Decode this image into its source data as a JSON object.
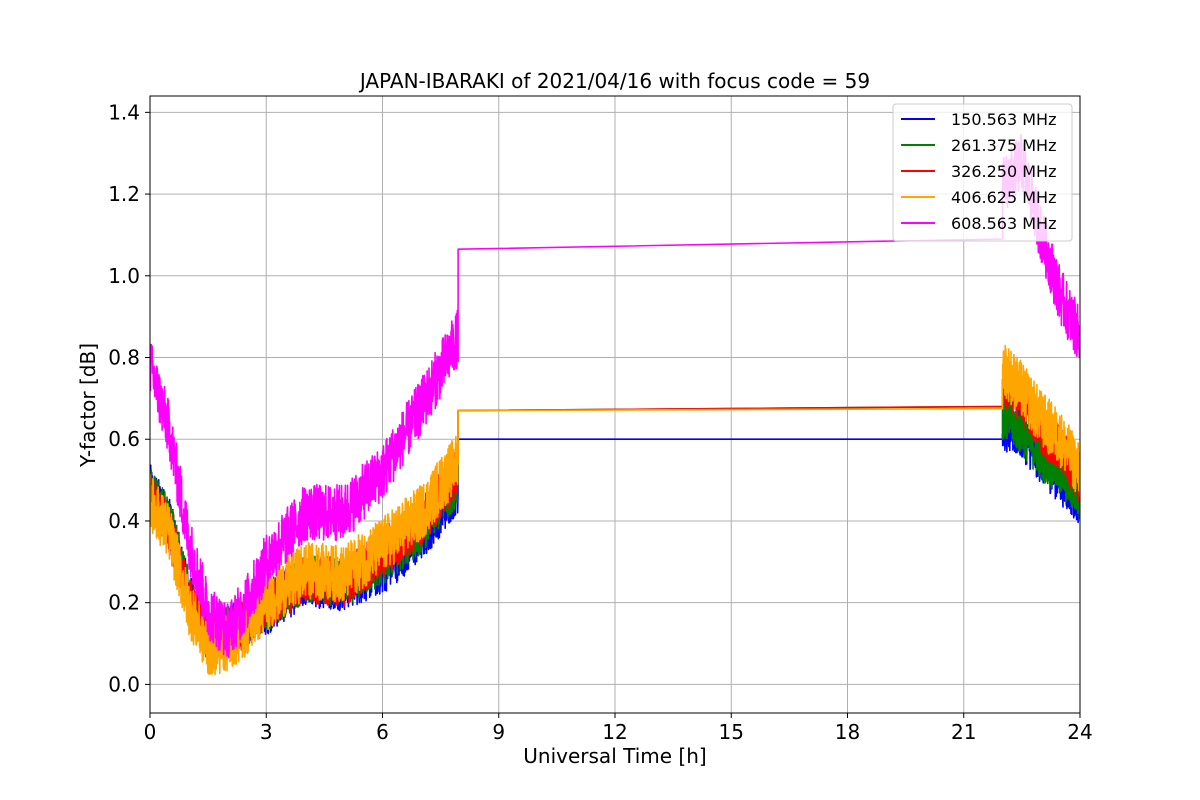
{
  "chart_data": {
    "type": "line",
    "title": "JAPAN-IBARAKI of 2021/04/16 with focus code = 59",
    "xlabel": "Universal Time [h]",
    "ylabel": "Y-factor [dB]",
    "xlim": [
      0,
      24
    ],
    "ylim": [
      -0.07,
      1.44
    ],
    "xticks": [
      0,
      3,
      6,
      9,
      12,
      15,
      18,
      21,
      24
    ],
    "yticks": [
      0.0,
      0.2,
      0.4,
      0.6,
      0.8,
      1.0,
      1.2,
      1.4
    ],
    "ytick_labels": [
      "0.0",
      "0.2",
      "0.4",
      "0.6",
      "0.8",
      "1.0",
      "1.2",
      "1.4"
    ],
    "grid": true,
    "legend_position": "top-right",
    "noise_note_free": true,
    "series": [
      {
        "name": "150.563 MHz",
        "color": "#0000ff",
        "amplitude": 0.06,
        "segments": [
          [
            [
              0,
              0.48
            ],
            [
              0.5,
              0.4
            ],
            [
              1.0,
              0.22
            ],
            [
              1.5,
              0.12
            ],
            [
              2.0,
              0.13
            ],
            [
              2.5,
              0.16
            ],
            [
              3.0,
              0.18
            ],
            [
              4.0,
              0.25
            ],
            [
              5.0,
              0.24
            ],
            [
              6.0,
              0.28
            ],
            [
              7.0,
              0.36
            ],
            [
              7.95,
              0.48
            ]
          ],
          [
            [
              7.95,
              0.6
            ],
            [
              22.0,
              0.6
            ]
          ],
          [
            [
              22.0,
              0.63
            ],
            [
              22.5,
              0.61
            ],
            [
              23.0,
              0.55
            ],
            [
              23.5,
              0.5
            ],
            [
              24.0,
              0.45
            ]
          ]
        ]
      },
      {
        "name": "261.375 MHz",
        "color": "#008000",
        "amplitude": 0.06,
        "segments": [
          [
            [
              0,
              0.47
            ],
            [
              0.5,
              0.4
            ],
            [
              1.0,
              0.22
            ],
            [
              1.5,
              0.12
            ],
            [
              2.0,
              0.13
            ],
            [
              2.5,
              0.16
            ],
            [
              3.0,
              0.19
            ],
            [
              4.0,
              0.26
            ],
            [
              5.0,
              0.25
            ],
            [
              6.0,
              0.3
            ],
            [
              7.0,
              0.38
            ],
            [
              7.95,
              0.5
            ]
          ],
          [
            [
              7.95,
              0.67
            ],
            [
              22.0,
              0.68
            ]
          ],
          [
            [
              22.0,
              0.66
            ],
            [
              22.5,
              0.62
            ],
            [
              23.0,
              0.56
            ],
            [
              23.5,
              0.52
            ],
            [
              24.0,
              0.46
            ]
          ]
        ]
      },
      {
        "name": "326.250 MHz",
        "color": "#ff0000",
        "amplitude": 0.06,
        "segments": [
          [
            [
              0,
              0.46
            ],
            [
              0.5,
              0.38
            ],
            [
              1.0,
              0.21
            ],
            [
              1.5,
              0.11
            ],
            [
              2.0,
              0.12
            ],
            [
              2.5,
              0.15
            ],
            [
              3.0,
              0.19
            ],
            [
              4.0,
              0.26
            ],
            [
              5.0,
              0.25
            ],
            [
              6.0,
              0.32
            ],
            [
              7.0,
              0.4
            ],
            [
              7.95,
              0.52
            ]
          ],
          [
            [
              7.95,
              0.67
            ],
            [
              22.0,
              0.68
            ]
          ],
          [
            [
              22.0,
              0.74
            ],
            [
              22.5,
              0.7
            ],
            [
              23.0,
              0.62
            ],
            [
              23.5,
              0.58
            ],
            [
              24.0,
              0.5
            ]
          ]
        ]
      },
      {
        "name": "406.625 MHz",
        "color": "#ffa500",
        "amplitude": 0.07,
        "segments": [
          [
            [
              0,
              0.45
            ],
            [
              0.5,
              0.37
            ],
            [
              1.0,
              0.19
            ],
            [
              1.5,
              0.09
            ],
            [
              2.0,
              0.1
            ],
            [
              2.5,
              0.14
            ],
            [
              3.0,
              0.2
            ],
            [
              4.0,
              0.28
            ],
            [
              5.0,
              0.27
            ],
            [
              6.0,
              0.34
            ],
            [
              7.0,
              0.42
            ],
            [
              7.95,
              0.55
            ]
          ],
          [
            [
              7.95,
              0.67
            ],
            [
              22.0,
              0.675
            ]
          ],
          [
            [
              22.0,
              0.78
            ],
            [
              22.5,
              0.72
            ],
            [
              23.0,
              0.65
            ],
            [
              23.5,
              0.6
            ],
            [
              24.0,
              0.52
            ]
          ]
        ]
      },
      {
        "name": "608.563 MHz",
        "color": "#ff00ff",
        "amplitude": 0.07,
        "segments": [
          [
            [
              0,
              0.78
            ],
            [
              0.5,
              0.62
            ],
            [
              1.0,
              0.35
            ],
            [
              1.5,
              0.18
            ],
            [
              2.0,
              0.13
            ],
            [
              2.5,
              0.2
            ],
            [
              3.0,
              0.3
            ],
            [
              4.0,
              0.42
            ],
            [
              5.0,
              0.42
            ],
            [
              6.0,
              0.52
            ],
            [
              7.0,
              0.68
            ],
            [
              7.95,
              0.85
            ]
          ],
          [
            [
              7.95,
              1.065
            ],
            [
              22.0,
              1.09
            ]
          ],
          [
            [
              22.0,
              1.22
            ],
            [
              22.5,
              1.28
            ],
            [
              23.0,
              1.1
            ],
            [
              23.5,
              0.95
            ],
            [
              24.0,
              0.85
            ]
          ]
        ]
      }
    ]
  }
}
